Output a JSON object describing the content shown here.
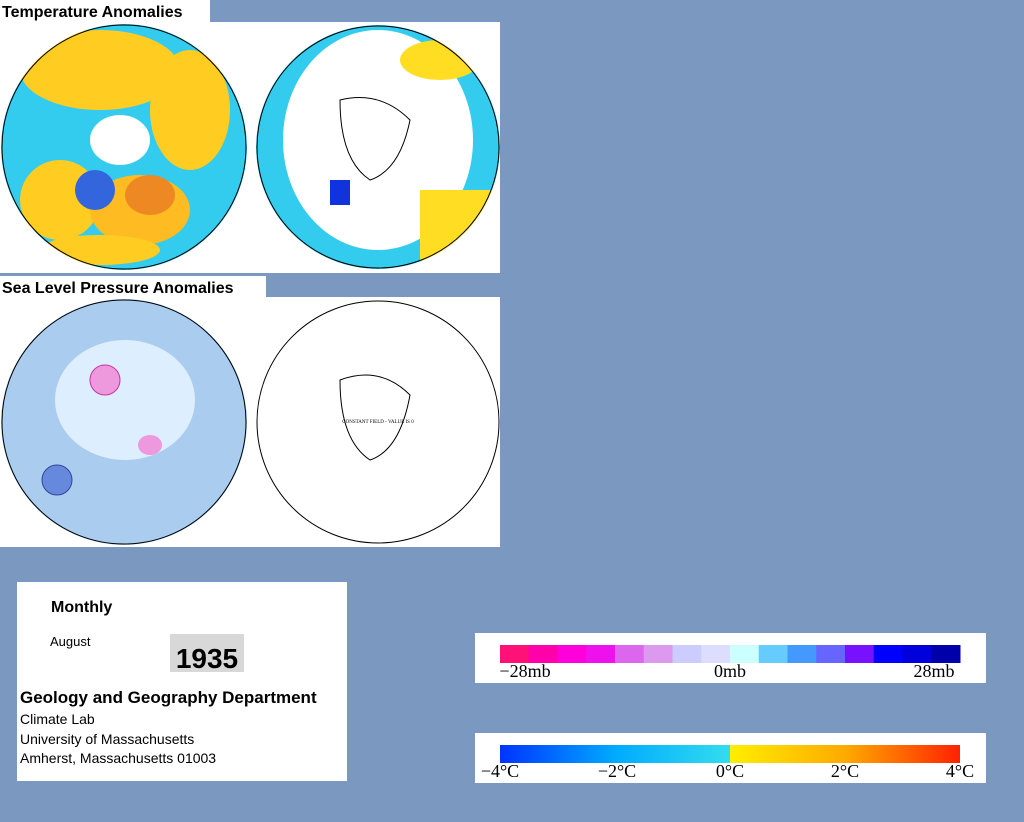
{
  "header": {
    "temperature_title": "Temperature Anomalies",
    "pressure_title": "Sea Level Pressure Anomalies"
  },
  "maps": {
    "pressure_south_note": "CONSTANT FIELD - VALUE IS 0"
  },
  "info": {
    "period": "Monthly",
    "month": "August",
    "year": "1935",
    "department": "Geology and Geography Department",
    "lab": "Climate Lab",
    "university": "University of Massachusetts",
    "address": "Amherst, Massachusetts 01003"
  },
  "pressure_legend": {
    "labels": [
      "−28mb",
      "0mb",
      "28mb"
    ]
  },
  "temperature_legend": {
    "labels": [
      "−4°C",
      "−2°C",
      "0°C",
      "2°C",
      "4°C"
    ]
  }
}
